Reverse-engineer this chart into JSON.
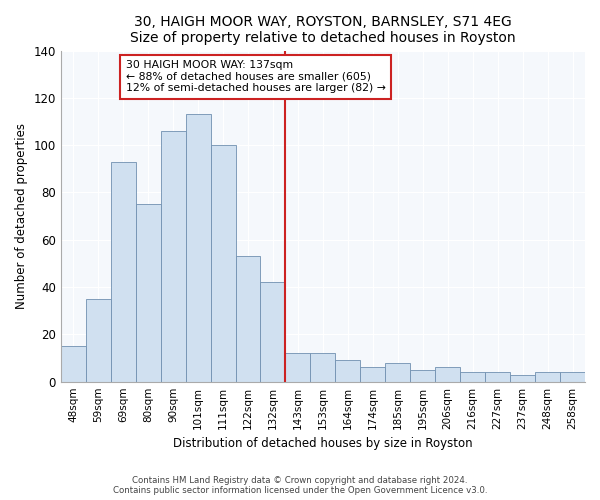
{
  "title": "30, HAIGH MOOR WAY, ROYSTON, BARNSLEY, S71 4EG",
  "subtitle": "Size of property relative to detached houses in Royston",
  "xlabel": "Distribution of detached houses by size in Royston",
  "ylabel": "Number of detached properties",
  "bar_labels": [
    "48sqm",
    "59sqm",
    "69sqm",
    "80sqm",
    "90sqm",
    "101sqm",
    "111sqm",
    "122sqm",
    "132sqm",
    "143sqm",
    "153sqm",
    "164sqm",
    "174sqm",
    "185sqm",
    "195sqm",
    "206sqm",
    "216sqm",
    "227sqm",
    "237sqm",
    "248sqm",
    "258sqm"
  ],
  "bar_values": [
    15,
    35,
    93,
    75,
    106,
    113,
    100,
    53,
    42,
    12,
    12,
    9,
    6,
    8,
    5,
    6,
    4,
    4,
    3,
    4,
    4
  ],
  "bar_color": "#d0e0f0",
  "bar_edge_color": "#7090b0",
  "vline_x_index": 8.5,
  "vline_color": "#cc2222",
  "annotation_title": "30 HAIGH MOOR WAY: 137sqm",
  "annotation_line1": "← 88% of detached houses are smaller (605)",
  "annotation_line2": "12% of semi-detached houses are larger (82) →",
  "annotation_box_facecolor": "#ffffff",
  "annotation_box_edgecolor": "#cc2222",
  "ylim": [
    0,
    140
  ],
  "yticks": [
    0,
    20,
    40,
    60,
    80,
    100,
    120,
    140
  ],
  "footer1": "Contains HM Land Registry data © Crown copyright and database right 2024.",
  "footer2": "Contains public sector information licensed under the Open Government Licence v3.0.",
  "background_color": "#ffffff",
  "plot_bg_color": "#f5f8fc"
}
